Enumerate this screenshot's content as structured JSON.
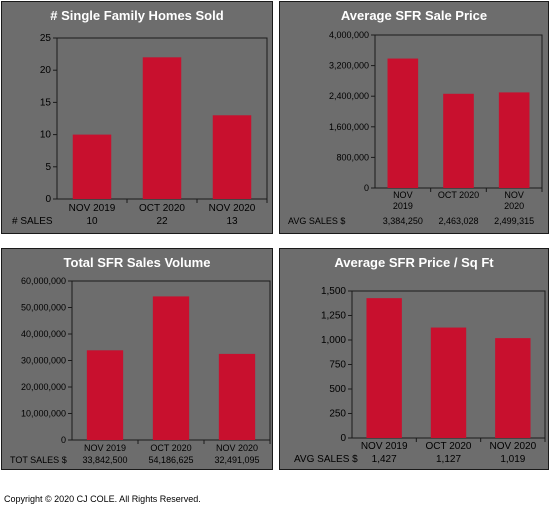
{
  "colors": {
    "panel_bg": "#6d6d6d",
    "bar": "#c8102e",
    "text": "#000000",
    "title": "#ffffff"
  },
  "copyright": "Copyright © 2020 CJ COLE. All Rights Reserved.",
  "chart_data": [
    {
      "type": "bar",
      "title": "# Single Family Homes Sold",
      "categories": [
        "NOV 2019",
        "OCT 2020",
        "NOV 2020"
      ],
      "values": [
        10,
        22,
        13
      ],
      "ylim": [
        0,
        25
      ],
      "yticks": [
        "0",
        "5",
        "10",
        "15",
        "20",
        "25"
      ],
      "grid": false,
      "table_label": "# SALES",
      "table_values": [
        "10",
        "22",
        "13"
      ]
    },
    {
      "type": "bar",
      "title": "Average  SFR Sale Price",
      "categories": [
        "NOV\n2019",
        "OCT 2020",
        "NOV\n2020"
      ],
      "values": [
        3384250,
        2463028,
        2499315
      ],
      "ylim": [
        0,
        4000000
      ],
      "yticks": [
        "0",
        "800,000",
        "1,600,000",
        "2,400,000",
        "3,200,000",
        "4,000,000"
      ],
      "grid": false,
      "table_label": "AVG SALES $",
      "table_values": [
        "3,384,250",
        "2,463,028",
        "2,499,315"
      ]
    },
    {
      "type": "bar",
      "title": "Total SFR Sales Volume",
      "categories": [
        "NOV 2019",
        "OCT 2020",
        "NOV 2020"
      ],
      "values": [
        33842500,
        54186625,
        32491095
      ],
      "ylim": [
        0,
        60000000
      ],
      "yticks": [
        "0",
        "10,000,000",
        "20,000,000",
        "30,000,000",
        "40,000,000",
        "50,000,000",
        "60,000,000"
      ],
      "grid": false,
      "table_label": "TOT SALES $",
      "table_values": [
        "33,842,500",
        "54,186,625",
        "32,491,095"
      ]
    },
    {
      "type": "bar",
      "title": "Average SFR Price / Sq Ft",
      "categories": [
        "NOV 2019",
        "OCT 2020",
        "NOV 2020"
      ],
      "values": [
        1427,
        1127,
        1019
      ],
      "ylim": [
        0,
        1500
      ],
      "yticks": [
        "0",
        "250",
        "500",
        "750",
        "1,000",
        "1,250",
        "1,500"
      ],
      "grid": false,
      "table_label": "AVG SALES $",
      "table_values": [
        "1,427",
        "1,127",
        "1,019"
      ]
    }
  ]
}
